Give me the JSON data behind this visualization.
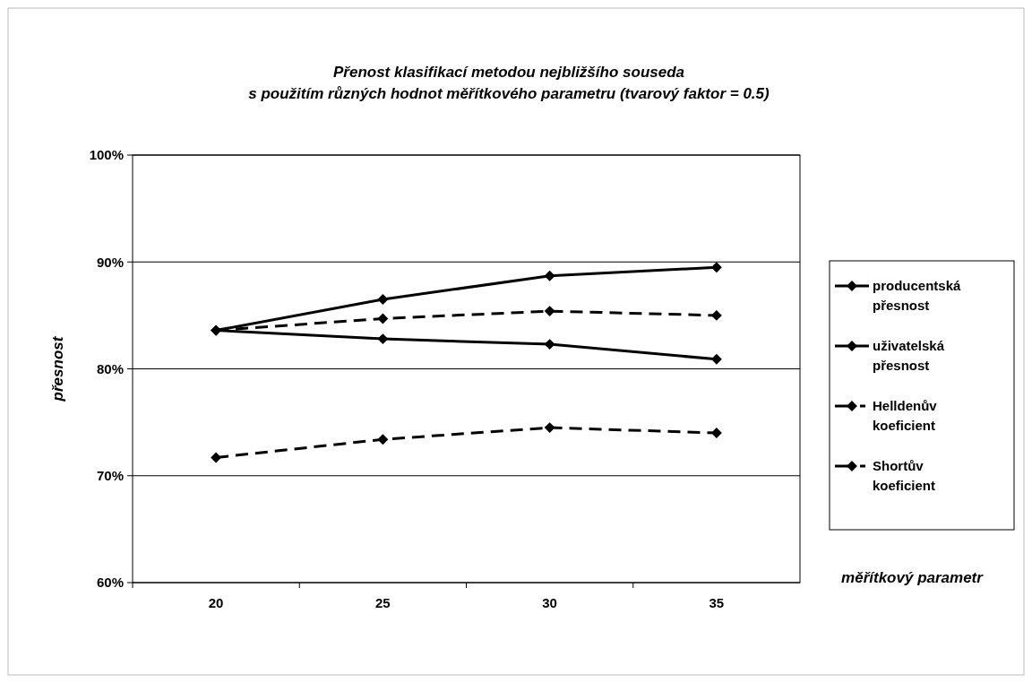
{
  "chart_data": {
    "type": "line",
    "title": "Přenost klasifikací metodou nejbližšího souseda",
    "subtitle": "s použitím různých hodnot měřítkového parametru (tvarový faktor = 0.5)",
    "xlabel": "měřítkový parametr",
    "ylabel": "přesnost",
    "categories": [
      "20",
      "25",
      "30",
      "35"
    ],
    "series": [
      {
        "name": "producentská přesnost",
        "color": "#000000",
        "line_style": "solid",
        "values": [
          83.6,
          86.5,
          88.7,
          89.5
        ]
      },
      {
        "name": "uživatelská přesnost",
        "color": "#000000",
        "line_style": "solid",
        "values": [
          83.6,
          82.8,
          82.3,
          80.9
        ]
      },
      {
        "name": "Helldenův koeficient",
        "color": "#000000",
        "line_style": "dashed",
        "values": [
          83.6,
          84.7,
          85.4,
          85.0
        ]
      },
      {
        "name": "Shortův koeficient",
        "color": "#000000",
        "line_style": "dashed",
        "values": [
          71.7,
          73.4,
          74.5,
          74.0
        ]
      }
    ],
    "ylim": [
      60,
      100
    ],
    "yticks": [
      {
        "value": 60,
        "label": "60%"
      },
      {
        "value": 70,
        "label": "70%"
      },
      {
        "value": 80,
        "label": "80%"
      },
      {
        "value": 90,
        "label": "90%"
      },
      {
        "value": 100,
        "label": "100%"
      }
    ],
    "grid": "y",
    "legend": "right",
    "marker": "diamond"
  }
}
